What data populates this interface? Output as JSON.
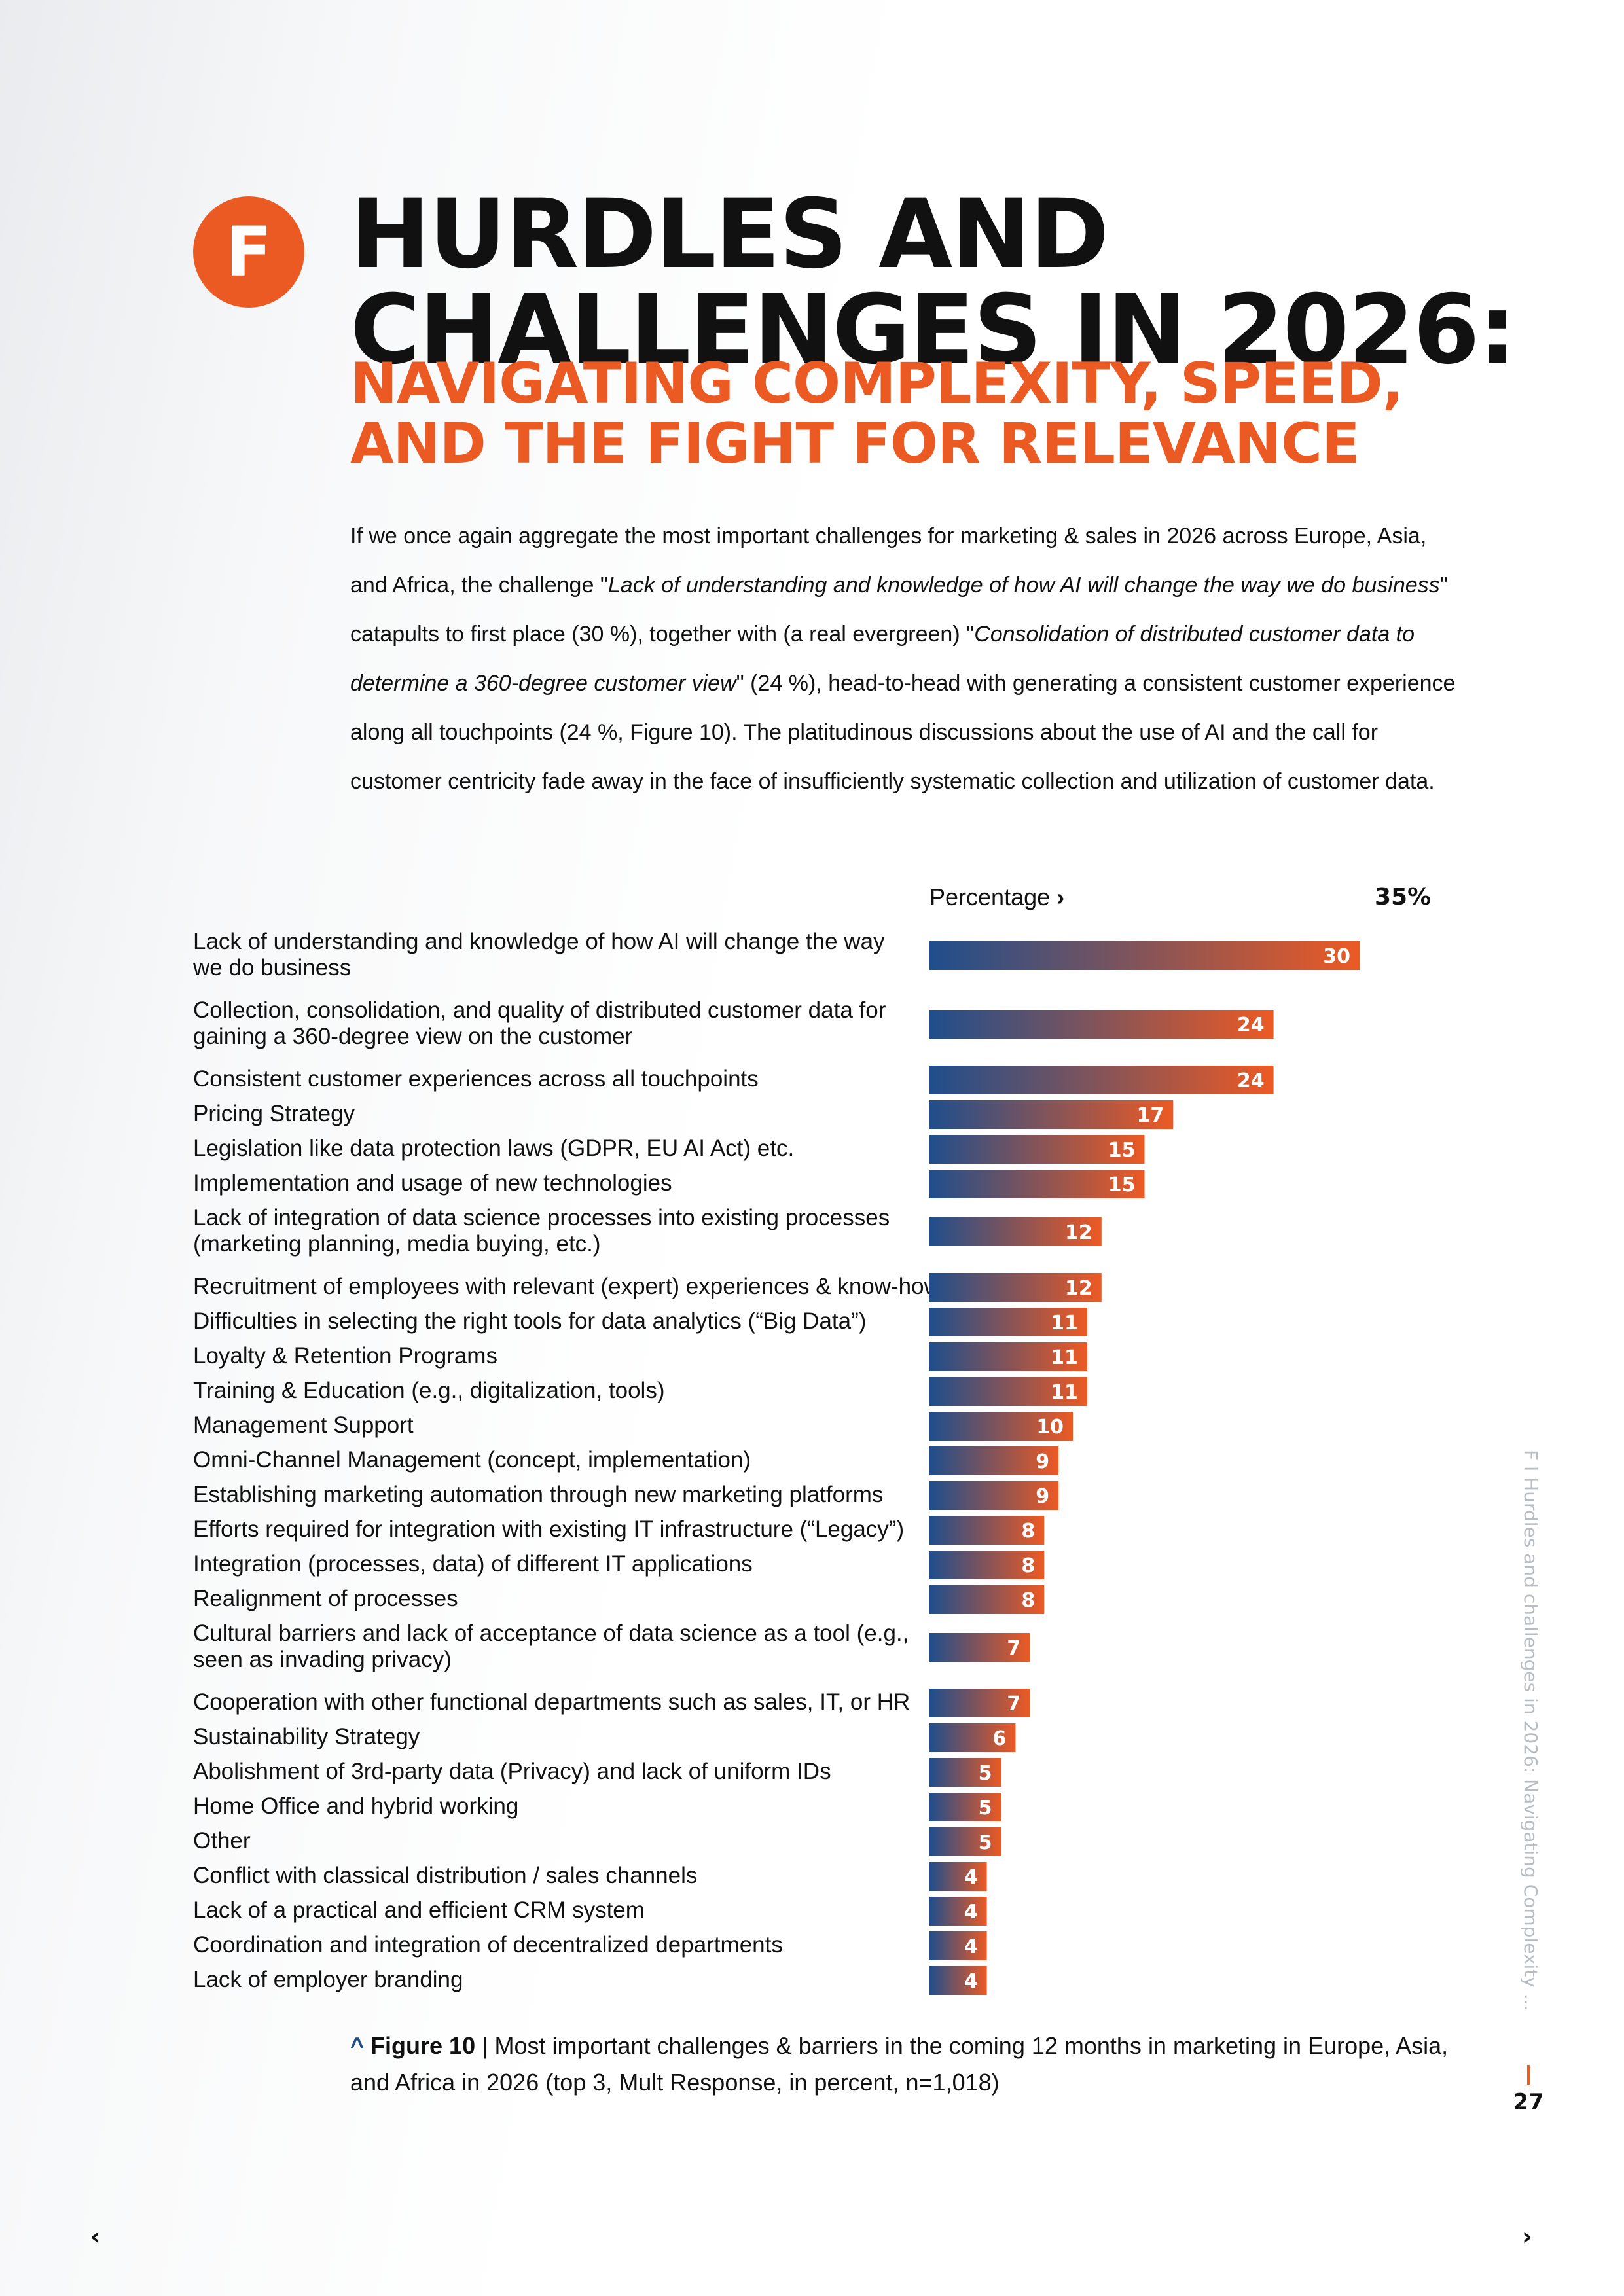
{
  "section": {
    "badge": "F"
  },
  "header": {
    "title_line1": "HURDLES AND",
    "title_line2": "CHALLENGES IN 2026:",
    "subtitle_line1": "NAVIGATING COMPLEXITY, SPEED,",
    "subtitle_line2": "AND THE FIGHT FOR RELEVANCE"
  },
  "intro": {
    "p1": "If we once again aggregate the most important challenges for marketing & sales in 2026 across Europe, Asia, and Africa, the challenge \"",
    "em1": "Lack of understanding and knowledge of how AI will change the way we do business",
    "p2": "\" catapults to first place (30 %), together with (a real evergreen) \"",
    "em2": "Consolidation of distributed customer data to determine a 360-degree customer view",
    "p3": "\" (24 %), head-to-head with generating a consistent customer experience along all touchpoints (24 %, Figure 10). The platitudinous discussions about the use of AI and the call for customer centricity fade away in the face of insufficiently systematic collection and utilization of customer data."
  },
  "chart_data": {
    "type": "bar",
    "orientation": "horizontal",
    "xlabel": "Percentage",
    "xlim": [
      0,
      35
    ],
    "x_max_label": "35%",
    "gradient": [
      "#1f4e8c",
      "#ec5a24"
    ],
    "categories": [
      [
        "Lack of understanding and knowledge of how AI will change the way",
        "we do business"
      ],
      [
        "Collection, consolidation, and quality of distributed customer data for",
        "gaining a 360-degree view on the customer"
      ],
      [
        "Consistent customer experiences across all touchpoints"
      ],
      [
        "Pricing Strategy"
      ],
      [
        "Legislation like data protection laws (GDPR, EU AI Act) etc."
      ],
      [
        "Implementation and usage of new technologies"
      ],
      [
        "Lack of integration of data science processes into existing processes",
        "(marketing planning, media buying, etc.)"
      ],
      [
        "Recruitment of employees with relevant (expert) experiences & know-how"
      ],
      [
        "Difficulties in selecting the right tools for data analytics (“Big Data”)"
      ],
      [
        "Loyalty & Retention Programs"
      ],
      [
        "Training & Education (e.g., digitalization, tools)"
      ],
      [
        "Management Support"
      ],
      [
        "Omni-Channel Management (concept, implementation)"
      ],
      [
        "Establishing marketing automation through new marketing platforms"
      ],
      [
        "Efforts required for integration with existing IT infrastructure (“Legacy”)"
      ],
      [
        "Integration (processes, data) of different IT applications"
      ],
      [
        "Realignment of processes"
      ],
      [
        "Cultural barriers and lack of acceptance of data science as a tool (e.g.,",
        "seen as invading privacy)"
      ],
      [
        "Cooperation with other functional departments such as sales, IT, or HR"
      ],
      [
        "Sustainability Strategy"
      ],
      [
        "Abolishment of 3rd-party data (Privacy) and lack of uniform IDs"
      ],
      [
        "Home Office and hybrid working"
      ],
      [
        "Other"
      ],
      [
        "Conflict with classical distribution / sales channels"
      ],
      [
        "Lack of a practical and efficient CRM system"
      ],
      [
        "Coordination and integration of decentralized departments"
      ],
      [
        "Lack of employer branding"
      ]
    ],
    "values": [
      30,
      24,
      24,
      17,
      15,
      15,
      12,
      12,
      11,
      11,
      11,
      10,
      9,
      9,
      8,
      8,
      8,
      7,
      7,
      6,
      5,
      5,
      5,
      4,
      4,
      4,
      4
    ]
  },
  "caption": {
    "caret": "^",
    "figure": "Figure 10",
    "text": " | Most important challenges & barriers in the coming 12 months in marketing in Europe, Asia, and Africa in 2026 (top 3, Mult Response, in percent, n=1,018)"
  },
  "side": {
    "running_title": "F I Hurdles and challenges in 2026: Navigating Complexity ...",
    "page_number": "27"
  },
  "nav": {
    "prev": "‹",
    "next": "›"
  }
}
